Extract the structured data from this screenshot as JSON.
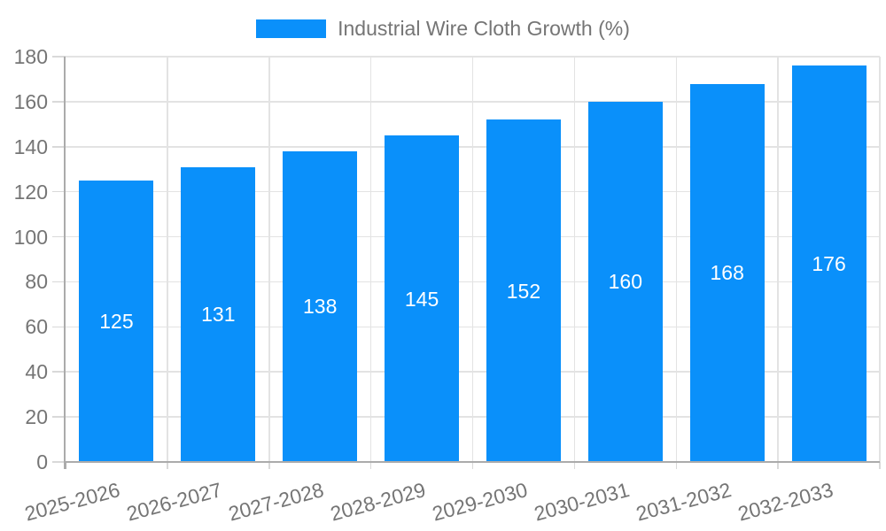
{
  "legend": {
    "label": "Industrial Wire Cloth Growth (%)"
  },
  "chart_data": {
    "type": "bar",
    "title": "",
    "categories": [
      "2025-2026",
      "2026-2027",
      "2027-2028",
      "2028-2029",
      "2029-2030",
      "2030-2031",
      "2031-2032",
      "2032-2033"
    ],
    "values": [
      125,
      131,
      138,
      145,
      152,
      160,
      168,
      176
    ],
    "series": [
      {
        "name": "Industrial Wire Cloth Growth (%)",
        "values": [
          125,
          131,
          138,
          145,
          152,
          160,
          168,
          176
        ]
      }
    ],
    "value_labels": [
      "125",
      "131",
      "138",
      "145",
      "152",
      "160",
      "168",
      "176"
    ],
    "xlabel": "",
    "ylabel": "",
    "ylim": [
      0,
      180
    ],
    "yticks": [
      0,
      20,
      40,
      60,
      80,
      100,
      120,
      140,
      160,
      180
    ],
    "grid": true,
    "legend_position": "top",
    "x_label_rotation_deg": -15,
    "colors": {
      "bar": "#0A90FA",
      "value_label": "#FFFFFF",
      "axis_text": "#757575",
      "gridline": "#E3E3E3",
      "tick": "#D9D9D9",
      "axis_line": "#ABABAB",
      "background": "#FFFFFF"
    }
  }
}
